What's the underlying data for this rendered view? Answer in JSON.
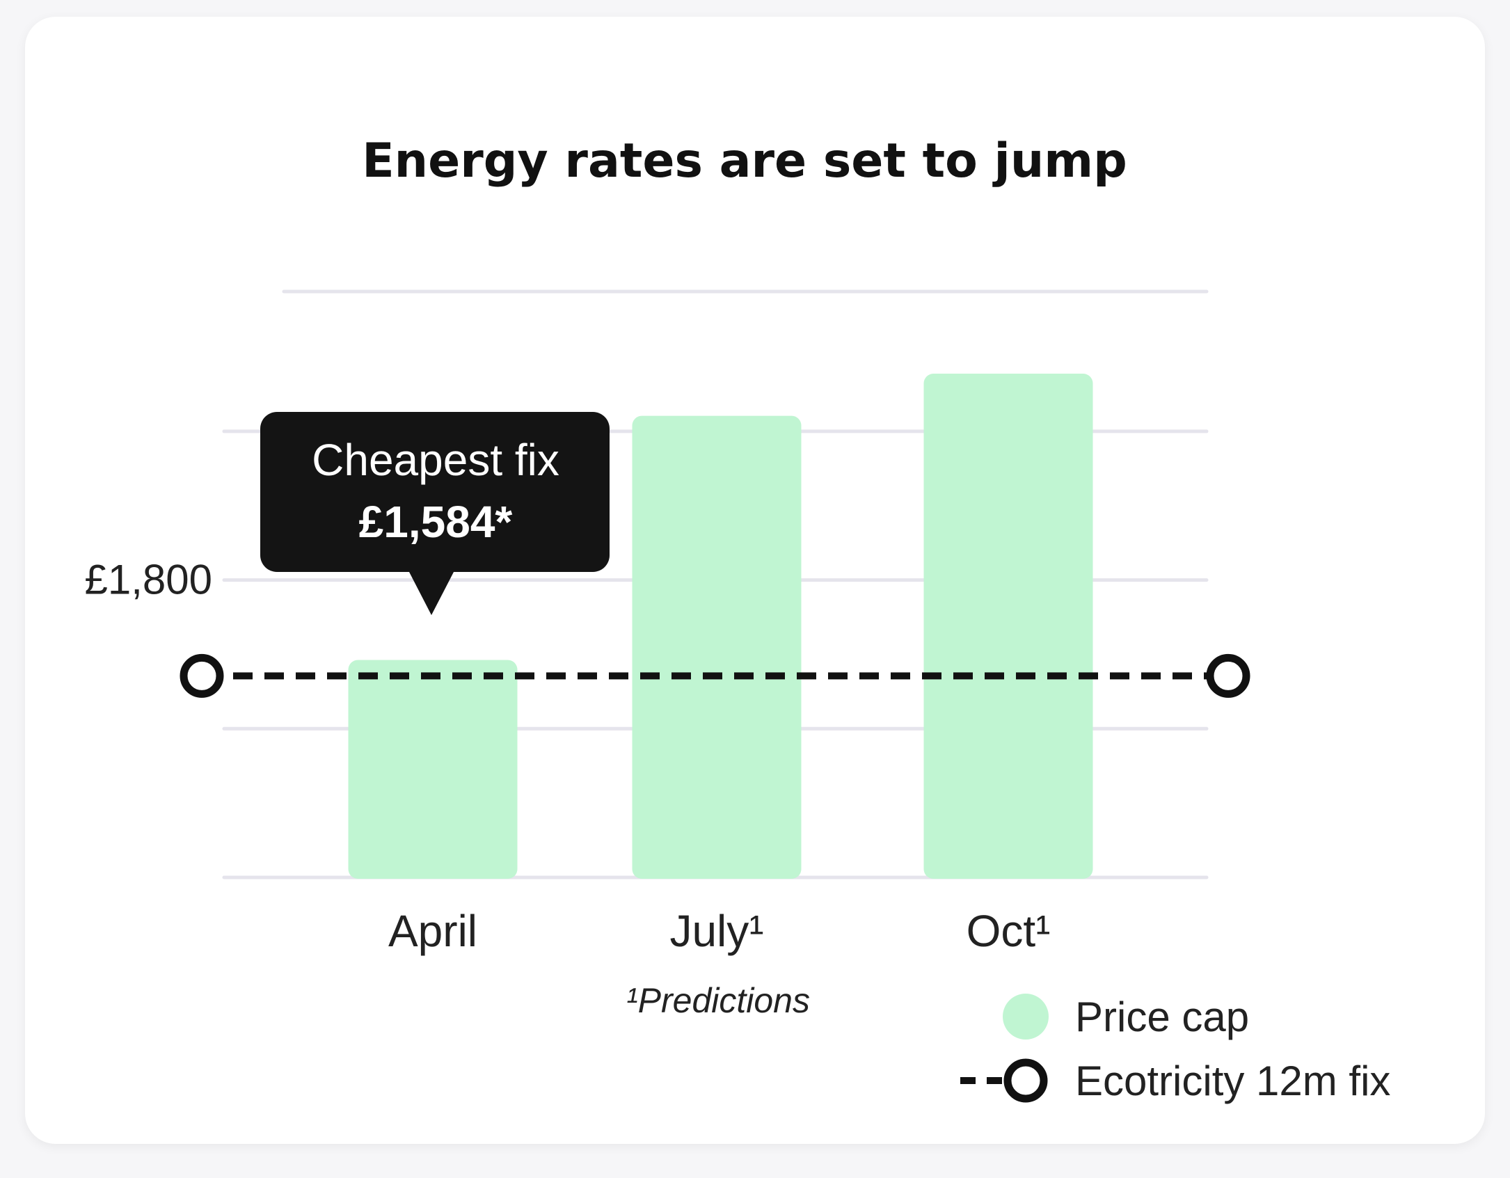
{
  "chart_data": {
    "type": "bar",
    "title": "Energy rates are set to jump",
    "categories": [
      "April",
      "July¹",
      "Oct¹"
    ],
    "series": [
      {
        "name": "Price cap",
        "values": [
          1620,
          2170,
          2265
        ]
      }
    ],
    "reference_line": {
      "name": "Ecotricity 12m fix",
      "value": 1584
    },
    "y_tick_labels": [
      {
        "value": 1800,
        "label": "£1,800"
      }
    ],
    "gridlines": [
      1130,
      1465,
      1800,
      2135,
      2450
    ],
    "ylim": [
      1130,
      2450
    ],
    "annotation": {
      "line1": "Cheapest fix",
      "line2": "£1,584*",
      "category": "April"
    },
    "footnote": "¹Predictions",
    "legend_position": "bottom-right",
    "colors": {
      "bar": "#c0f5d2",
      "line": "#111111",
      "grid": "#e5e4ec",
      "tooltip": "#141414"
    }
  }
}
